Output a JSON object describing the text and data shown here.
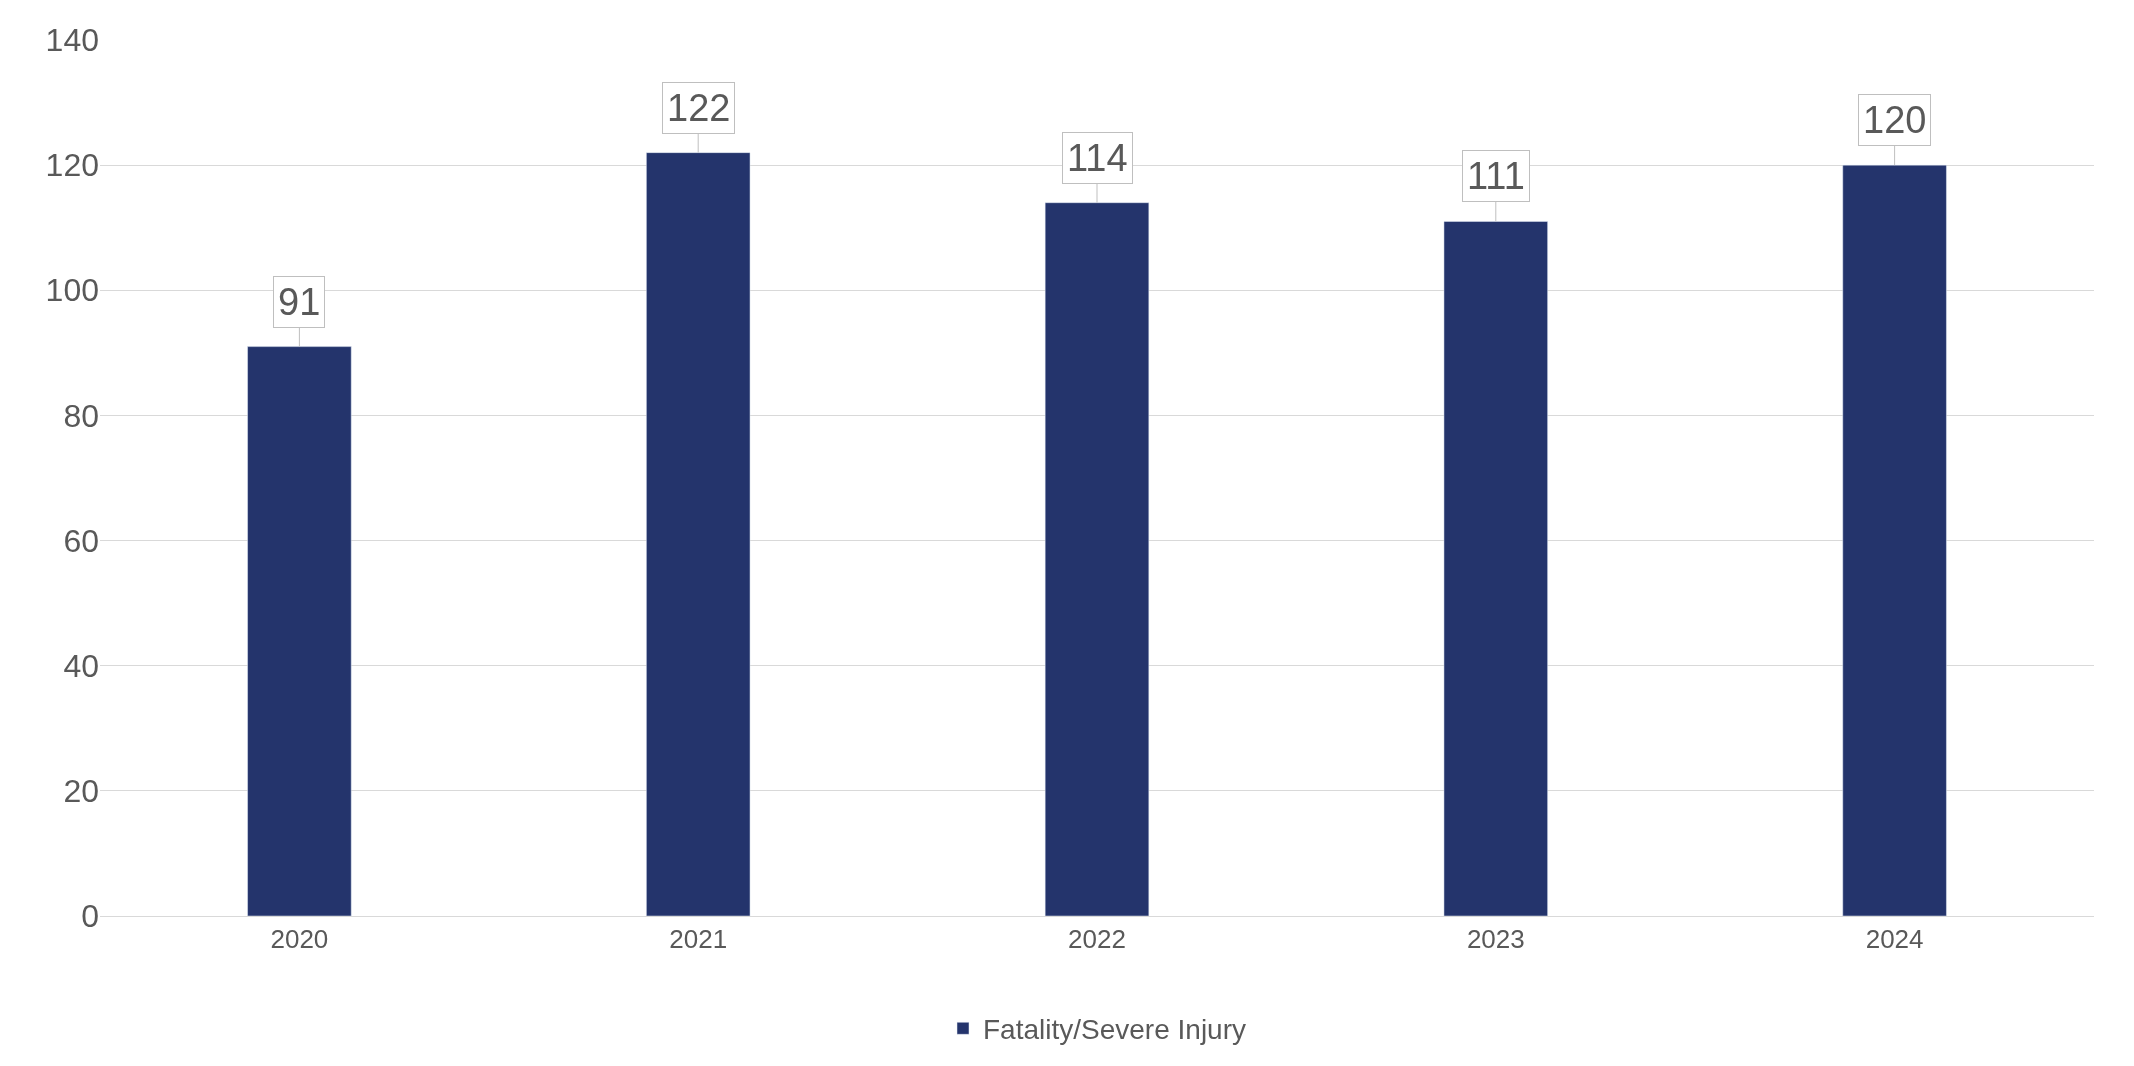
{
  "chart_data": {
    "type": "bar",
    "categories": [
      "2020",
      "2021",
      "2022",
      "2023",
      "2024"
    ],
    "series": [
      {
        "name": "Fatality/Severe Injury",
        "color": "#24346c",
        "values": [
          91,
          122,
          114,
          111,
          120
        ]
      }
    ],
    "ylim": [
      0,
      140
    ],
    "yticks": [
      0,
      20,
      40,
      60,
      80,
      100,
      120,
      140
    ],
    "grid": "y",
    "legend": "bottom",
    "data_labels": true
  }
}
